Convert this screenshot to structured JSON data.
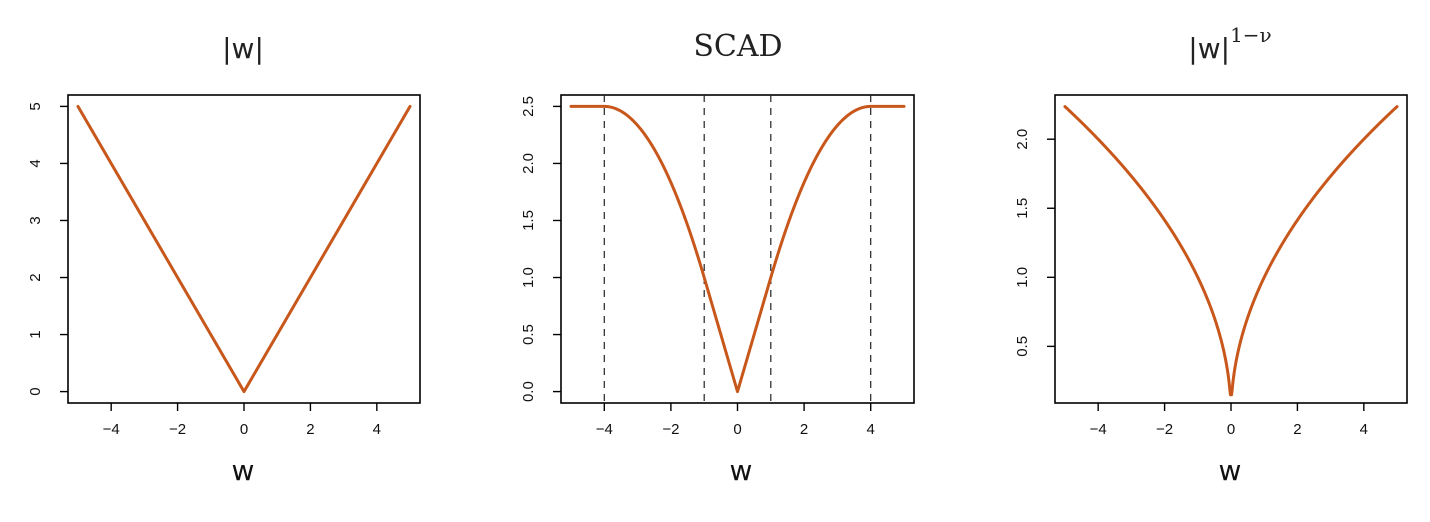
{
  "style": {
    "curve_color": "#c8571b",
    "frame_color": "#000000",
    "vline_color": "#222222"
  },
  "chart_data": [
    {
      "type": "line",
      "title": "|w|",
      "xlabel": "w",
      "ylabel": "",
      "xlim": [
        -5.3,
        5.3
      ],
      "ylim": [
        -0.2,
        5.2
      ],
      "xticks": [
        -4,
        -2,
        0,
        2,
        4
      ],
      "xtick_labels": [
        "−4",
        "−2",
        "0",
        "2",
        "4"
      ],
      "yticks": [
        0,
        1,
        2,
        3,
        4,
        5
      ],
      "ytick_labels": [
        "0",
        "1",
        "2",
        "3",
        "4",
        "5"
      ],
      "series": [
        {
          "x": [
            -5,
            -4,
            -3,
            -2,
            -1,
            0,
            1,
            2,
            3,
            4,
            5
          ],
          "y": [
            5,
            4,
            3,
            2,
            1,
            0,
            1,
            2,
            3,
            4,
            5
          ]
        }
      ],
      "vlines": []
    },
    {
      "type": "line",
      "title": "SCAD",
      "xlabel": "w",
      "ylabel": "",
      "xlim": [
        -5.3,
        5.3
      ],
      "ylim": [
        -0.1,
        2.6
      ],
      "xticks": [
        -4,
        -2,
        0,
        2,
        4
      ],
      "xtick_labels": [
        "−4",
        "−2",
        "0",
        "2",
        "4"
      ],
      "yticks": [
        0,
        0.5,
        1,
        1.5,
        2,
        2.5
      ],
      "ytick_labels": [
        "0.0",
        "0.5",
        "1.0",
        "1.5",
        "2.0",
        "2.5"
      ],
      "series": [
        {
          "x": [
            -5,
            -4.5,
            -4,
            -3.5,
            -3,
            -2.5,
            -2,
            -1.5,
            -1,
            -0.5,
            0,
            0.5,
            1,
            1.5,
            2,
            2.5,
            3,
            3.5,
            4,
            4.5,
            5
          ],
          "y": [
            2.5,
            2.5,
            2.5,
            2.458,
            2.333,
            2.125,
            1.833,
            1.458,
            1.0,
            0.5,
            0,
            0.5,
            1.0,
            1.458,
            1.833,
            2.125,
            2.333,
            2.458,
            2.5,
            2.5,
            2.5
          ]
        }
      ],
      "vlines": [
        -4,
        -1,
        1,
        4
      ]
    },
    {
      "type": "line",
      "title": "|w|",
      "title_superscript": "1−ν",
      "xlabel": "w",
      "ylabel": "",
      "xlim": [
        -5.3,
        5.3
      ],
      "ylim": [
        0.09,
        2.32
      ],
      "xticks": [
        -4,
        -2,
        0,
        2,
        4
      ],
      "xtick_labels": [
        "−4",
        "−2",
        "0",
        "2",
        "4"
      ],
      "yticks": [
        0.5,
        1.0,
        1.5,
        2.0
      ],
      "ytick_labels": [
        "0.5",
        "1.0",
        "1.5",
        "2.0"
      ],
      "series": [
        {
          "x": [
            -5,
            -4,
            -3,
            -2,
            -1,
            -0.5,
            -0.2,
            -0.05,
            0,
            0.05,
            0.2,
            0.5,
            1,
            2,
            3,
            4,
            5
          ],
          "y": [
            2.236,
            2.0,
            1.732,
            1.414,
            1.0,
            0.707,
            0.447,
            0.224,
            0.15,
            0.224,
            0.447,
            0.707,
            1.0,
            1.414,
            1.732,
            2.0,
            2.236
          ]
        }
      ],
      "vlines": []
    }
  ]
}
